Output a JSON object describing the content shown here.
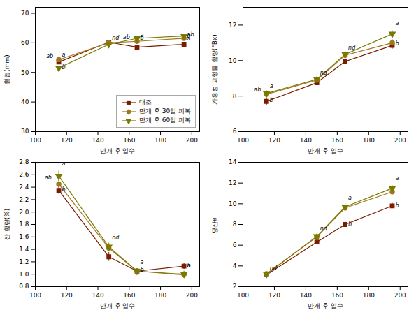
{
  "chart_data": [
    {
      "type": "line",
      "xlabel": "만개 후 일수",
      "ylabel": "횡경(mm)",
      "x": [
        115,
        147,
        165,
        195
      ],
      "xlim": [
        100,
        205
      ],
      "xticks": [
        100,
        120,
        140,
        160,
        180,
        200
      ],
      "ylim": [
        30,
        72
      ],
      "yticks": [
        30,
        40,
        50,
        60,
        70
      ],
      "grid": false,
      "legend": "lower right",
      "series": [
        {
          "name": "대조",
          "color": "#7B1C00",
          "marker": "square",
          "values": [
            53.5,
            60.2,
            58.5,
            59.5
          ],
          "errors": [
            0.6,
            0.5,
            0.7,
            0.6
          ]
        },
        {
          "name": "만개 후 30일 피복",
          "color": "#A07820",
          "marker": "circle",
          "values": [
            54.3,
            60.0,
            60.5,
            61.5
          ],
          "errors": [
            0.5,
            0.5,
            0.7,
            0.6
          ]
        },
        {
          "name": "만개 후 60일 피복",
          "color": "#7A7A00",
          "marker": "triangle_down",
          "values": [
            51.5,
            59.5,
            61.5,
            62.3
          ],
          "errors": [
            0.6,
            0.5,
            0.7,
            0.6
          ]
        }
      ],
      "annotations": [
        {
          "text": "a",
          "x": 117,
          "y": 55.4
        },
        {
          "text": "ab",
          "x": 107,
          "y": 54.8
        },
        {
          "text": "b",
          "x": 117,
          "y": 51.1
        },
        {
          "text": "nd",
          "x": 149,
          "y": 61.1
        },
        {
          "text": "a",
          "x": 167,
          "y": 61.9
        },
        {
          "text": "ab",
          "x": 156,
          "y": 61.2
        },
        {
          "text": "b",
          "x": 167,
          "y": 61.0
        },
        {
          "text": "a",
          "x": 197,
          "y": 60.9
        },
        {
          "text": "ab",
          "x": 197,
          "y": 62.3
        },
        {
          "text": "b",
          "x": 197,
          "y": 61.7
        }
      ]
    },
    {
      "type": "line",
      "xlabel": "만개 후 일수",
      "ylabel": "가용성 고형물 함량(°Bx)",
      "x": [
        115,
        147,
        165,
        195
      ],
      "xlim": [
        100,
        205
      ],
      "xticks": [
        100,
        120,
        140,
        160,
        180,
        200
      ],
      "ylim": [
        6,
        13
      ],
      "yticks": [
        6,
        8,
        10,
        12
      ],
      "grid": false,
      "series": [
        {
          "name": "대조",
          "color": "#7B1C00",
          "marker": "square",
          "values": [
            7.7,
            8.75,
            9.95,
            10.85
          ],
          "errors": [
            0.2,
            0.15,
            0.18,
            0.2
          ]
        },
        {
          "name": "만개 후 30일 피복",
          "color": "#A07820",
          "marker": "circle",
          "values": [
            8.1,
            8.9,
            10.3,
            11.0
          ],
          "errors": [
            0.15,
            0.15,
            0.18,
            0.18
          ]
        },
        {
          "name": "만개 후 60일 피복",
          "color": "#7A7A00",
          "marker": "triangle_down",
          "values": [
            8.15,
            8.95,
            10.35,
            11.5
          ],
          "errors": [
            0.15,
            0.15,
            0.18,
            0.18
          ]
        }
      ],
      "annotations": [
        {
          "text": "a",
          "x": 117,
          "y": 8.47
        },
        {
          "text": "ab",
          "x": 107,
          "y": 8.25
        },
        {
          "text": "b",
          "x": 117,
          "y": 7.68
        },
        {
          "text": "nd",
          "x": 149,
          "y": 9.2
        },
        {
          "text": "nd",
          "x": 167,
          "y": 10.63
        },
        {
          "text": "a",
          "x": 197,
          "y": 11.98
        },
        {
          "text": "b",
          "x": 197,
          "y": 10.85
        }
      ]
    },
    {
      "type": "line",
      "xlabel": "만개 후 일수",
      "ylabel": "산 함량(%)",
      "x": [
        115,
        147,
        165,
        195
      ],
      "xlim": [
        100,
        205
      ],
      "xticks": [
        100,
        120,
        140,
        160,
        180,
        200
      ],
      "ylim": [
        0.8,
        2.8
      ],
      "yticks": [
        0.8,
        {
          "value": 1.0,
          "label": "1.0"
        },
        1.2,
        1.4,
        1.6,
        1.8,
        {
          "value": 2.0,
          "label": "2.0"
        },
        2.2,
        2.4,
        2.6,
        2.8
      ],
      "grid": false,
      "series": [
        {
          "name": "대조",
          "color": "#7B1C00",
          "marker": "square",
          "values": [
            2.35,
            1.28,
            1.05,
            1.13
          ],
          "errors": [
            0.06,
            0.07,
            0.04,
            0.05
          ]
        },
        {
          "name": "만개 후 30일 피복",
          "color": "#A07820",
          "marker": "circle",
          "values": [
            2.45,
            1.42,
            1.05,
            0.99
          ],
          "errors": [
            0.07,
            0.06,
            0.04,
            0.05
          ]
        },
        {
          "name": "만개 후 60일 피복",
          "color": "#7A7A00",
          "marker": "triangle_down",
          "values": [
            2.58,
            1.44,
            1.05,
            1.0
          ],
          "errors": [
            0.08,
            0.06,
            0.04,
            0.05
          ]
        }
      ],
      "annotations": [
        {
          "text": "a",
          "x": 117,
          "y": 2.75
        },
        {
          "text": "ab",
          "x": 106,
          "y": 2.52
        },
        {
          "text": "b",
          "x": 117,
          "y": 2.33
        },
        {
          "text": "nd",
          "x": 149,
          "y": 1.56
        },
        {
          "text": "a",
          "x": 167,
          "y": 1.16
        },
        {
          "text": "b",
          "x": 167,
          "y": 1.04
        },
        {
          "text": "a",
          "x": 197,
          "y": 1.11
        },
        {
          "text": "b",
          "x": 197,
          "y": 1.11
        }
      ]
    },
    {
      "type": "line",
      "xlabel": "만개 후 일수",
      "ylabel": "당산비",
      "x": [
        115,
        147,
        165,
        195
      ],
      "xlim": [
        100,
        205
      ],
      "xticks": [
        100,
        120,
        140,
        160,
        180,
        200
      ],
      "ylim": [
        2,
        14
      ],
      "yticks": [
        2,
        4,
        6,
        8,
        10,
        12,
        14
      ],
      "grid": false,
      "series": [
        {
          "name": "대조",
          "color": "#7B1C00",
          "marker": "square",
          "values": [
            3.15,
            6.3,
            8.0,
            9.8
          ],
          "errors": [
            0.15,
            0.25,
            0.3,
            0.25
          ]
        },
        {
          "name": "만개 후 30일 피복",
          "color": "#A07820",
          "marker": "circle",
          "values": [
            3.25,
            6.8,
            9.6,
            11.15
          ],
          "errors": [
            0.15,
            0.25,
            0.3,
            0.25
          ]
        },
        {
          "name": "만개 후 60일 피복",
          "color": "#7A7A00",
          "marker": "triangle_down",
          "values": [
            3.2,
            6.85,
            9.7,
            11.5
          ],
          "errors": [
            0.15,
            0.25,
            0.3,
            0.25
          ]
        }
      ],
      "annotations": [
        {
          "text": "nd",
          "x": 117,
          "y": 3.6
        },
        {
          "text": "nd",
          "x": 149,
          "y": 7.45
        },
        {
          "text": "a",
          "x": 167,
          "y": 10.4
        },
        {
          "text": "b",
          "x": 167,
          "y": 7.8
        },
        {
          "text": "a",
          "x": 197,
          "y": 12.25
        },
        {
          "text": "b",
          "x": 197,
          "y": 9.65
        }
      ]
    }
  ]
}
